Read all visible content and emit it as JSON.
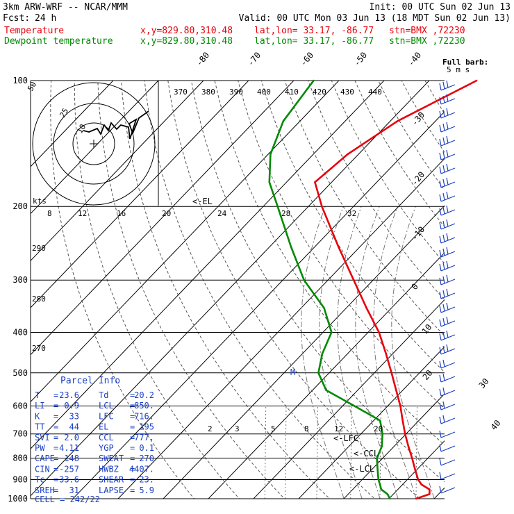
{
  "header": {
    "model": "3km ARW-WRF -- NCAR/MMM",
    "init": "Init: 00 UTC Sun 02 Jun 13",
    "fcst_label": "Fcst:",
    "fcst_value": "24 h",
    "valid": "Valid: 00 UTC Mon 03 Jun 13 (18 MDT Sun 02 Jun 13)",
    "line_temp": {
      "name": "Temperature",
      "xy": "x,y=829.80,310.48",
      "latlon": "lat,lon= 33.17, -86.77",
      "stn": "stn=BMX ,72230"
    },
    "line_dew": {
      "name": "Dewpoint temperature",
      "xy": "x,y=829.80,310.48",
      "latlon": "lat,lon= 33.17, -86.77",
      "stn": "stn=BMX ,72230"
    }
  },
  "colors": {
    "temperature": "#e8000b",
    "dewpoint": "#008a00",
    "barbs": "#1a3fc4",
    "grid": "#000000",
    "dry_adiabat": "#555555"
  },
  "legend": {
    "full_barb": "Full barb:",
    "full_barb_value": "5 m s"
  },
  "annotations": {
    "el": "<-EL",
    "lfc": "<-LFC",
    "ccl": "<-CCL",
    "lcl": "<-LCL",
    "kts": "kts",
    "hodo_ring_10": "10",
    "hodo_ring_25": "25",
    "hodo_ring_50": "50",
    "marker_m": "M"
  },
  "parcel_info": {
    "title": "Parcel Info",
    "rows": [
      [
        "T",
        "23.6",
        "Td",
        "20.2"
      ],
      [
        "LI",
        "-0.9",
        "LCL",
        "850."
      ],
      [
        "K",
        "33",
        "LFC",
        "716."
      ],
      [
        "TT",
        "44",
        "EL",
        "195"
      ],
      [
        "SVI",
        "2.0",
        "CCL",
        "777."
      ],
      [
        "PW",
        "4.11",
        "YGP",
        "0.1"
      ],
      [
        "CAPE",
        "148",
        "SWEAT",
        "270"
      ],
      [
        "CIN",
        "-257",
        "HWBZ",
        "4407."
      ],
      [
        "Tc",
        "33.6",
        "SHEAR",
        "23."
      ],
      [
        "SREH",
        "31",
        "LAPSE",
        "5.9"
      ]
    ],
    "cell_label": "CELL",
    "cell_value": "242/22"
  },
  "chart_data": {
    "type": "line",
    "title": "",
    "xlabel": "",
    "ylabel": "",
    "pressure_levels_hPa": [
      1000,
      900,
      800,
      700,
      600,
      500,
      400,
      300,
      200,
      100
    ],
    "pressure_tick_labels": [
      "1000",
      "900",
      "800",
      "700",
      "600",
      "500",
      "400",
      "300",
      "200",
      "100"
    ],
    "isotherm_labels_top": [
      "-80",
      "-70",
      "-60",
      "-50",
      "-40"
    ],
    "isotherm_labels_right": [
      "-30",
      "-20",
      "-10",
      "0",
      "10",
      "20",
      "30",
      "40"
    ],
    "theta_labels": [
      "370",
      "380",
      "390",
      "400",
      "410",
      "420",
      "430",
      "440"
    ],
    "theta_labels_left": [
      "290",
      "280",
      "270"
    ],
    "mixing_ratio_labels": [
      "2",
      "3",
      "5",
      "8",
      "12",
      "20"
    ],
    "hodograph_speed_labels": [
      "8",
      "12",
      "16",
      "20",
      "24",
      "28",
      "32"
    ],
    "series": [
      {
        "name": "Temperature",
        "pressure": [
          1000,
          975,
          950,
          925,
          900,
          850,
          800,
          750,
          700,
          650,
          600,
          550,
          500,
          450,
          400,
          350,
          300,
          250,
          200,
          175,
          150,
          125,
          100
        ],
        "temperature_C": [
          26,
          28,
          27,
          24.2,
          22.4,
          19.5,
          16.5,
          13.2,
          9.8,
          6.4,
          2.8,
          -1.5,
          -6.2,
          -11.5,
          -17.6,
          -25.5,
          -34.3,
          -44.7,
          -57,
          -63.7,
          -62.4,
          -58.4,
          -49.5
        ]
      },
      {
        "name": "Dewpoint temperature",
        "pressure": [
          1000,
          975,
          950,
          925,
          900,
          850,
          800,
          750,
          700,
          650,
          600,
          550,
          500,
          450,
          400,
          350,
          300,
          250,
          200,
          175,
          150,
          125,
          100
        ],
        "temperature_C": [
          20.2,
          18.7,
          16.3,
          15,
          13.6,
          11.2,
          8.7,
          7.3,
          4.8,
          1.4,
          -7.4,
          -17,
          -22.4,
          -25.6,
          -28.1,
          -34.9,
          -45.3,
          -55.2,
          -66.8,
          -73.8,
          -79.5,
          -83.7,
          -85.6
        ]
      }
    ]
  }
}
